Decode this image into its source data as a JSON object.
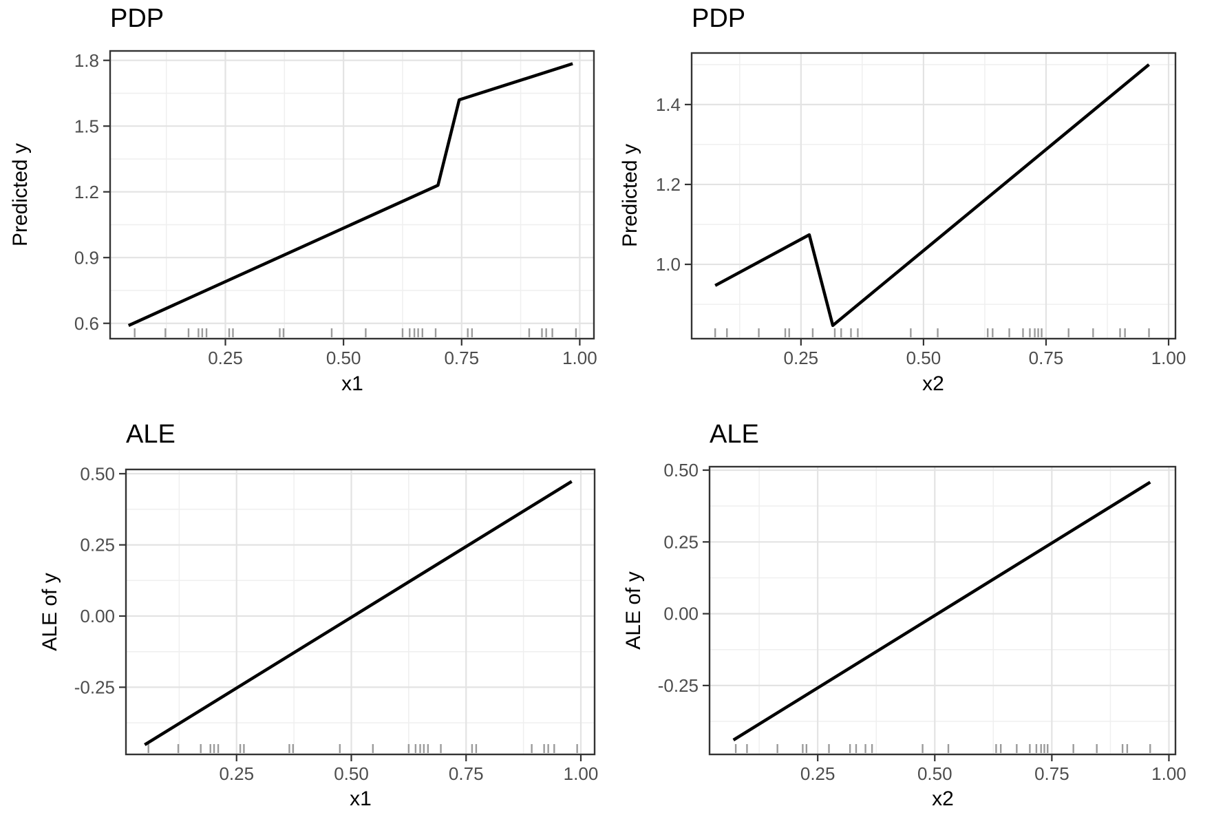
{
  "style": {
    "background": "#ffffff",
    "line_color": "#000000",
    "grid_major_color": "#e3e3e3",
    "grid_minor_color": "#efefef",
    "panel_border_color": "#333333",
    "tick_color": "#333333",
    "tick_label_color": "#4d4d4d",
    "axis_title_color": "#000000",
    "rug_color": "#9b9b9b"
  },
  "chart_data": [
    {
      "id": "pdp-x1",
      "type": "line",
      "title": "PDP",
      "xlabel": "x1",
      "ylabel": "Predicted y",
      "xlim": [
        0.006,
        1.03
      ],
      "ylim": [
        0.53,
        1.843
      ],
      "x_tick_values": [
        0.25,
        0.5,
        0.75,
        1.0
      ],
      "x_tick_labels": [
        "0.25",
        "0.50",
        "0.75",
        "1.00"
      ],
      "x_minor": [
        0.125,
        0.375,
        0.625,
        0.875
      ],
      "y_tick_values": [
        0.6,
        0.9,
        1.2,
        1.5,
        1.8
      ],
      "y_tick_labels": [
        "0.6",
        "0.9",
        "1.2",
        "1.5",
        "1.8"
      ],
      "y_minor": [
        0.75,
        1.05,
        1.35,
        1.65
      ],
      "grid": true,
      "legend": "none",
      "line": [
        [
          0.045,
          0.59
        ],
        [
          0.7,
          1.23
        ],
        [
          0.745,
          1.62
        ],
        [
          0.985,
          1.785
        ]
      ],
      "rug": [
        0.058,
        0.123,
        0.172,
        0.193,
        0.201,
        0.21,
        0.258,
        0.266,
        0.365,
        0.373,
        0.475,
        0.547,
        0.625,
        0.64,
        0.65,
        0.658,
        0.667,
        0.695,
        0.763,
        0.772,
        0.893,
        0.92,
        0.929,
        0.942,
        0.992
      ]
    },
    {
      "id": "pdp-x2",
      "type": "line",
      "title": "PDP",
      "xlabel": "x2",
      "ylabel": "Predicted y",
      "xlim": [
        0.027,
        1.014
      ],
      "ylim": [
        0.814,
        1.529
      ],
      "x_tick_values": [
        0.25,
        0.5,
        0.75,
        1.0
      ],
      "x_tick_labels": [
        "0.25",
        "0.50",
        "0.75",
        "1.00"
      ],
      "x_minor": [
        0.125,
        0.375,
        0.625,
        0.875
      ],
      "y_tick_values": [
        1.0,
        1.2,
        1.4
      ],
      "y_tick_labels": [
        "1.0",
        "1.2",
        "1.4"
      ],
      "y_minor": [
        0.9,
        1.1,
        1.3,
        1.5
      ],
      "grid": true,
      "legend": "none",
      "line": [
        [
          0.075,
          0.947
        ],
        [
          0.267,
          1.074
        ],
        [
          0.315,
          0.847
        ],
        [
          0.96,
          1.5
        ]
      ],
      "rug": [
        0.075,
        0.099,
        0.164,
        0.218,
        0.226,
        0.274,
        0.319,
        0.332,
        0.352,
        0.366,
        0.474,
        0.529,
        0.631,
        0.641,
        0.675,
        0.703,
        0.717,
        0.727,
        0.734,
        0.741,
        0.796,
        0.846,
        0.901,
        0.911,
        0.96
      ]
    },
    {
      "id": "ale-x1",
      "type": "line",
      "title": "ALE",
      "xlabel": "x1",
      "ylabel": "ALE of y",
      "xlim": [
        0.009,
        1.03
      ],
      "ylim": [
        -0.486,
        0.515
      ],
      "x_tick_values": [
        0.25,
        0.5,
        0.75,
        1.0
      ],
      "x_tick_labels": [
        "0.25",
        "0.50",
        "0.75",
        "1.00"
      ],
      "x_minor": [
        0.125,
        0.375,
        0.625,
        0.875
      ],
      "y_tick_values": [
        -0.25,
        0.0,
        0.25,
        0.5
      ],
      "y_tick_labels": [
        "-0.25",
        "0.00",
        "0.25",
        "0.50"
      ],
      "y_minor": [
        -0.375,
        -0.125,
        0.125,
        0.375
      ],
      "grid": true,
      "legend": "none",
      "line": [
        [
          0.05,
          -0.452
        ],
        [
          0.98,
          0.473
        ]
      ],
      "rug": [
        0.058,
        0.123,
        0.172,
        0.193,
        0.201,
        0.21,
        0.258,
        0.266,
        0.365,
        0.373,
        0.475,
        0.547,
        0.625,
        0.64,
        0.65,
        0.658,
        0.667,
        0.695,
        0.763,
        0.772,
        0.893,
        0.92,
        0.929,
        0.942,
        0.992
      ]
    },
    {
      "id": "ale-x2",
      "type": "line",
      "title": "ALE",
      "xlabel": "x2",
      "ylabel": "ALE of y",
      "xlim": [
        0.019,
        1.014
      ],
      "ylim": [
        -0.49,
        0.512
      ],
      "x_tick_values": [
        0.25,
        0.5,
        0.75,
        1.0
      ],
      "x_tick_labels": [
        "0.25",
        "0.50",
        "0.75",
        "1.00"
      ],
      "x_minor": [
        0.125,
        0.375,
        0.625,
        0.875
      ],
      "y_tick_values": [
        -0.25,
        0.0,
        0.25,
        0.5
      ],
      "y_tick_labels": [
        "-0.25",
        "0.00",
        "0.25",
        "0.50"
      ],
      "y_minor": [
        -0.375,
        -0.125,
        0.125,
        0.375
      ],
      "grid": true,
      "legend": "none",
      "line": [
        [
          0.07,
          -0.44
        ],
        [
          0.96,
          0.458
        ]
      ],
      "rug": [
        0.075,
        0.099,
        0.164,
        0.218,
        0.226,
        0.274,
        0.319,
        0.332,
        0.352,
        0.366,
        0.474,
        0.529,
        0.631,
        0.641,
        0.675,
        0.703,
        0.717,
        0.727,
        0.734,
        0.741,
        0.796,
        0.846,
        0.901,
        0.911,
        0.96
      ]
    }
  ]
}
